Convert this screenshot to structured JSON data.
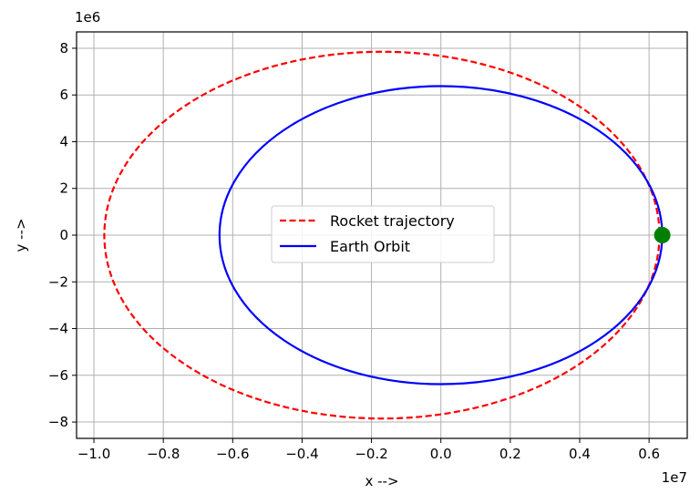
{
  "chart_data": {
    "type": "line",
    "title": "",
    "xlabel": "x -->",
    "ylabel": "y -->",
    "x_scale_label": "1e7",
    "y_scale_label": "1e6",
    "xlim": [
      -10500000,
      7100000
    ],
    "ylim": [
      -8700000,
      8700000
    ],
    "x_ticks": [
      -10000000,
      -8000000,
      -6000000,
      -4000000,
      -2000000,
      0,
      2000000,
      4000000,
      6000000
    ],
    "x_tick_labels": [
      "−1.0",
      "−0.8",
      "−0.6",
      "−0.4",
      "−0.2",
      "0.0",
      "0.2",
      "0.4",
      "0.6"
    ],
    "y_ticks": [
      -8000000,
      -6000000,
      -4000000,
      -2000000,
      0,
      2000000,
      4000000,
      6000000,
      8000000
    ],
    "y_tick_labels": [
      "−8",
      "−6",
      "−4",
      "−2",
      "0",
      "2",
      "4",
      "6",
      "8"
    ],
    "grid": true,
    "legend_position": "center",
    "series": [
      {
        "name": "Rocket trajectory",
        "kind": "ellipse",
        "center": [
          -1700000,
          0
        ],
        "semi_axes": [
          8000000,
          7850000
        ],
        "color": "#ff0000",
        "style": "dashed"
      },
      {
        "name": "Earth Orbit",
        "kind": "ellipse",
        "center": [
          0,
          0
        ],
        "semi_axes": [
          6380000,
          6380000
        ],
        "color": "#0000ff",
        "style": "solid"
      }
    ],
    "points": [
      {
        "name": "Earth",
        "x": 6380000,
        "y": 0,
        "color": "#008000"
      }
    ]
  }
}
